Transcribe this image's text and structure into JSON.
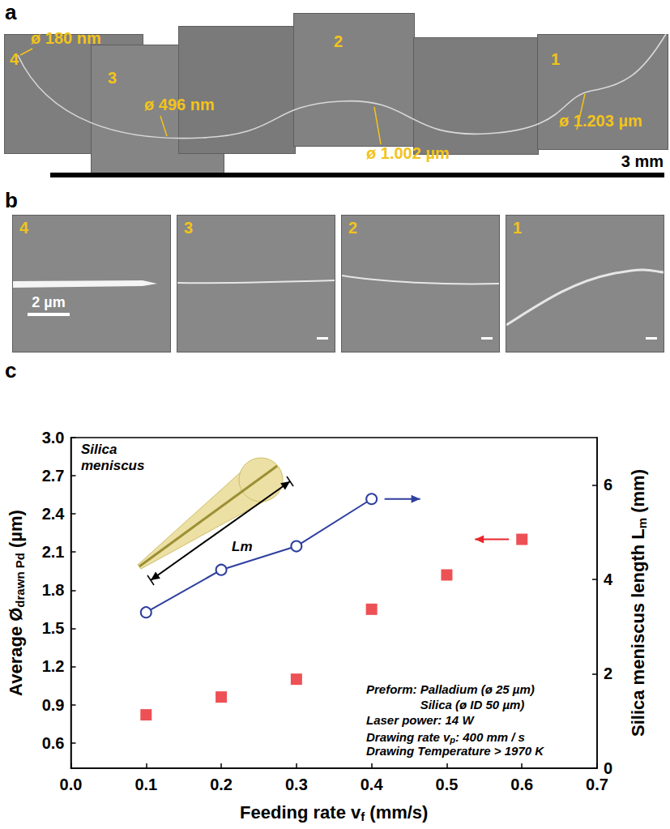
{
  "panel_a": {
    "letter": "a",
    "fibers": [
      {
        "number": "4",
        "diameter": "ø 180 nm"
      },
      {
        "number": "3",
        "diameter": "ø 496 nm"
      },
      {
        "number": "2",
        "diameter": "ø 1.002 µm"
      },
      {
        "number": "1",
        "diameter": "ø 1.203 µm"
      }
    ],
    "scale_bar": "3 mm"
  },
  "panel_b": {
    "letter": "b",
    "images": [
      "4",
      "3",
      "2",
      "1"
    ],
    "scale_bar": "2 µm"
  },
  "panel_c": {
    "letter": "c"
  },
  "chart_data": {
    "type": "scatter",
    "x_label": [
      "Feeding rate v",
      {
        "sub": "f"
      },
      " (mm/s)"
    ],
    "y_label": [
      "Average Ø",
      {
        "sub": "drawn Pd"
      },
      " (µm)"
    ],
    "y2_label": [
      "Silica meniscus length L",
      {
        "sub": "m"
      },
      " (mm)"
    ],
    "xlim": [
      0,
      0.7
    ],
    "xticks": [
      {
        "value": 0,
        "label": "0.0"
      },
      0.1,
      0.2,
      0.3,
      0.4,
      0.5,
      0.6,
      0.7
    ],
    "ylim": [
      0.4,
      3.0
    ],
    "yticks": [
      0.6,
      0.9,
      1.2,
      1.5,
      1.8,
      2.1,
      2.4,
      2.7,
      {
        "value": 3,
        "label": "3.0"
      }
    ],
    "y2lim": [
      0,
      7
    ],
    "y2ticks": [
      0,
      2,
      4,
      6
    ],
    "grid": false,
    "series": [
      {
        "type": "scatter",
        "marker": "square",
        "color": "#e8262b",
        "axis": "y",
        "x": [
          0.1,
          0.2,
          0.3,
          0.4,
          0.5,
          0.6
        ],
        "values": [
          0.82,
          0.96,
          1.1,
          1.65,
          1.92,
          2.2
        ]
      },
      {
        "type": "line",
        "marker": "open circle",
        "color": "#2e3f9e",
        "axis": "y2",
        "x": [
          0.1,
          0.2,
          0.3,
          0.4
        ],
        "values": [
          3.3,
          4.2,
          4.7,
          5.7
        ]
      }
    ],
    "annotations": {
      "inset_title": "Silica meniscus",
      "inset_length": "Lm",
      "conditions": [
        {
          "label": "Preform:",
          "value": "Palladium (ø 25 µm)"
        },
        {
          "value": "Silica (ø ID 50 µm)"
        },
        {
          "label": "Laser power:",
          "value": "14 W"
        },
        {
          "label": [
            "Drawing rate v",
            {
              "sub": "p"
            },
            ":"
          ],
          "value": "400 mm / s"
        },
        {
          "label": "Drawing Temperature",
          "value": "> 1970 K"
        }
      ]
    }
  }
}
